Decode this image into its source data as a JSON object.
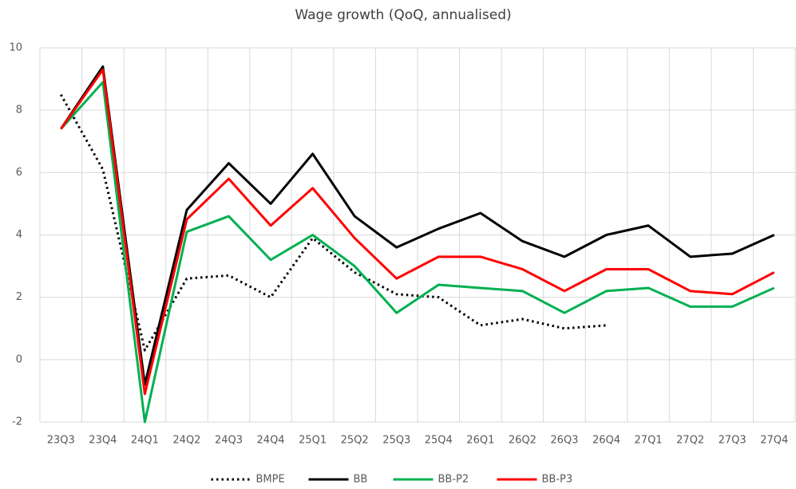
{
  "chart_data": {
    "type": "line",
    "title": "Wage growth (QoQ, annualised)",
    "categories": [
      "23Q3",
      "23Q4",
      "24Q1",
      "24Q2",
      "24Q3",
      "24Q4",
      "25Q1",
      "25Q2",
      "25Q3",
      "25Q4",
      "26Q1",
      "26Q2",
      "26Q3",
      "26Q4",
      "27Q1",
      "27Q2",
      "27Q3",
      "27Q4"
    ],
    "series": [
      {
        "name": "BMPE",
        "color": "#000000",
        "line_style": "dotted",
        "values": [
          8.5,
          6.1,
          0.3,
          2.6,
          2.7,
          2.0,
          3.9,
          2.8,
          2.1,
          2.0,
          1.1,
          1.3,
          1.0,
          1.1,
          null,
          null,
          null,
          null
        ]
      },
      {
        "name": "BB",
        "color": "#000000",
        "line_style": "solid",
        "values": [
          7.4,
          9.4,
          -0.8,
          4.8,
          6.3,
          5.0,
          6.6,
          4.6,
          3.6,
          4.2,
          4.7,
          3.8,
          3.3,
          4.0,
          4.3,
          3.3,
          3.4,
          4.0
        ]
      },
      {
        "name": "BB-P2",
        "color": "#00b050",
        "line_style": "solid",
        "values": [
          7.4,
          8.9,
          -2.0,
          4.1,
          4.6,
          3.2,
          4.0,
          3.0,
          1.5,
          2.4,
          2.3,
          2.2,
          1.5,
          2.2,
          2.3,
          1.7,
          1.7,
          2.3
        ]
      },
      {
        "name": "BB-P3",
        "color": "#ff0000",
        "line_style": "solid",
        "values": [
          7.4,
          9.3,
          -1.1,
          4.5,
          5.8,
          4.3,
          5.5,
          3.9,
          2.6,
          3.3,
          3.3,
          2.9,
          2.2,
          2.9,
          2.9,
          2.2,
          2.1,
          2.8
        ]
      }
    ],
    "ylim": [
      -2,
      10
    ],
    "yticks": [
      -2,
      0,
      2,
      4,
      6,
      8,
      10
    ],
    "grid": true,
    "legend": "bottom"
  }
}
